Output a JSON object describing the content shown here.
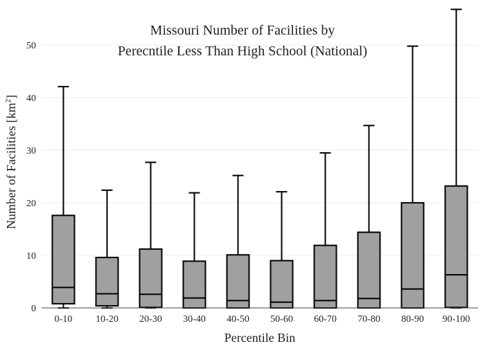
{
  "chart_data": {
    "type": "box",
    "title_lines": [
      "Missouri Number of Facilities by",
      "Perecntile Less Than High School (National)"
    ],
    "xlabel": "Percentile Bin",
    "ylabel_main": "Number of Facilities  [km",
    "ylabel_sup": "2",
    "ylabel_end": "]",
    "ylim": [
      0,
      57
    ],
    "yticks": [
      0,
      10,
      20,
      30,
      40,
      50
    ],
    "grid": true,
    "box_color": "#a0a0a0",
    "categories": [
      "0-10",
      "10-20",
      "20-30",
      "30-40",
      "40-50",
      "50-60",
      "60-70",
      "70-80",
      "80-90",
      "90-100"
    ],
    "boxes": [
      {
        "min": 0,
        "q1": 0.8,
        "median": 3.9,
        "q3": 17.6,
        "max": 42.1
      },
      {
        "min": 0,
        "q1": 0.4,
        "median": 2.7,
        "q3": 9.6,
        "max": 22.4
      },
      {
        "min": 0,
        "q1": 0.1,
        "median": 2.6,
        "q3": 11.2,
        "max": 27.7
      },
      {
        "min": 0,
        "q1": 0.0,
        "median": 1.9,
        "q3": 8.9,
        "max": 21.9
      },
      {
        "min": 0,
        "q1": 0.0,
        "median": 1.4,
        "q3": 10.1,
        "max": 25.2
      },
      {
        "min": 0,
        "q1": 0.0,
        "median": 1.1,
        "q3": 9.0,
        "max": 22.1
      },
      {
        "min": 0,
        "q1": 0.0,
        "median": 1.4,
        "q3": 11.9,
        "max": 29.5
      },
      {
        "min": 0,
        "q1": 0.0,
        "median": 1.8,
        "q3": 14.4,
        "max": 34.7
      },
      {
        "min": 0,
        "q1": 0.0,
        "median": 3.6,
        "q3": 20.0,
        "max": 49.8
      },
      {
        "min": 0,
        "q1": 0.1,
        "median": 6.3,
        "q3": 23.2,
        "max": 56.8
      }
    ]
  }
}
